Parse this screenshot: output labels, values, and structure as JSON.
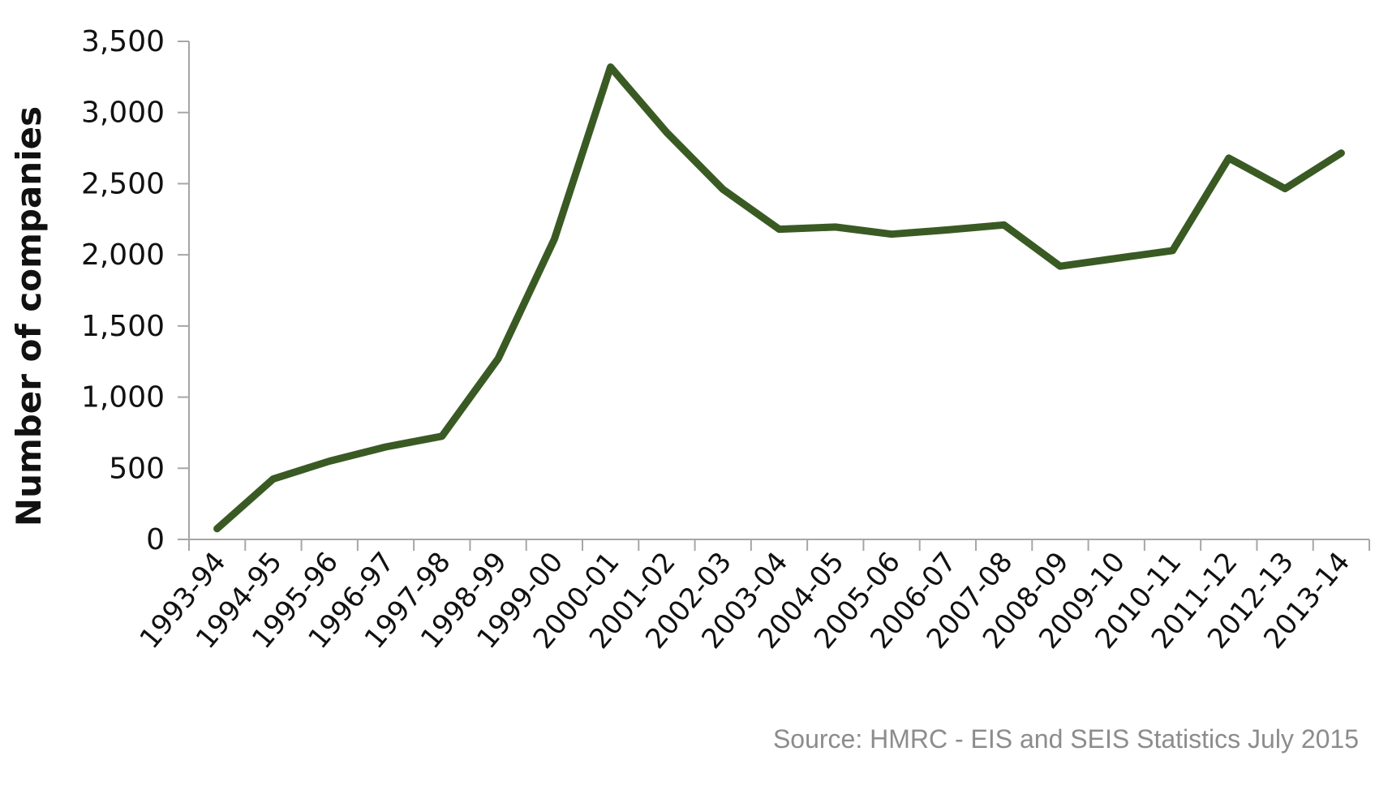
{
  "chart_data": {
    "type": "line",
    "ylabel": "Number of companies",
    "ylim": [
      0,
      3500
    ],
    "yticks": [
      "0",
      "500",
      "1,000",
      "1,500",
      "2,000",
      "2,500",
      "3,000",
      "3,500"
    ],
    "ytick_values": [
      0,
      500,
      1000,
      1500,
      2000,
      2500,
      3000,
      3500
    ],
    "categories": [
      "1993-94",
      "1994-95",
      "1995-96",
      "1996-97",
      "1997-98",
      "1998-99",
      "1999-00",
      "2000-01",
      "2001-02",
      "2002-03",
      "2003-04",
      "2004-05",
      "2005-06",
      "2006-07",
      "2007-08",
      "2008-09",
      "2009-10",
      "2010-11",
      "2011-12",
      "2012-13",
      "2013-14"
    ],
    "series": [
      {
        "values": [
          75,
          425,
          550,
          650,
          725,
          1270,
          2110,
          3320,
          2860,
          2460,
          2180,
          2195,
          2145,
          2175,
          2210,
          1920,
          1975,
          2030,
          2680,
          2465,
          2715
        ],
        "color": "#3a5a24"
      }
    ],
    "grid": false,
    "legend": "none"
  },
  "source_note": "Source: HMRC - EIS and SEIS Statistics July 2015"
}
